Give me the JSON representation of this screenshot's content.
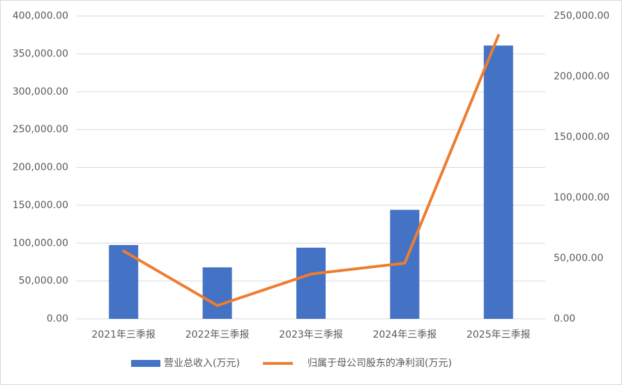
{
  "chart_data": {
    "type": "bar-line",
    "categories": [
      "2021年三季报",
      "2022年三季报",
      "2023年三季报",
      "2024年三季报",
      "2025年三季报"
    ],
    "series": [
      {
        "name": "营业总收入(万元)",
        "type": "bar",
        "color": "#4472c4",
        "values": [
          97500,
          68000,
          94000,
          144000,
          361000
        ]
      },
      {
        "name": "归属于母公司股东的净利润(万元)",
        "type": "line",
        "axis": "y2",
        "color": "#ed7d31",
        "values": [
          56000,
          11000,
          37000,
          46000,
          234000
        ]
      }
    ],
    "ylim": [
      0,
      400000
    ],
    "yticks": [
      {
        "value": 0,
        "label": "0.00"
      },
      {
        "value": 50000,
        "label": "50,000.00"
      },
      {
        "value": 100000,
        "label": "100,000.00"
      },
      {
        "value": 150000,
        "label": "150,000.00"
      },
      {
        "value": 200000,
        "label": "200,000.00"
      },
      {
        "value": 250000,
        "label": "250,000.00"
      },
      {
        "value": 300000,
        "label": "300,000.00"
      },
      {
        "value": 350000,
        "label": "350,000.00"
      },
      {
        "value": 400000,
        "label": "400,000.00"
      }
    ],
    "y2lim": [
      0,
      250000
    ],
    "y2ticks": [
      {
        "value": 0,
        "label": "0.00"
      },
      {
        "value": 50000,
        "label": "50,000.00"
      },
      {
        "value": 100000,
        "label": "100,000.00"
      },
      {
        "value": 150000,
        "label": "150,000.00"
      },
      {
        "value": 200000,
        "label": "200,000.00"
      },
      {
        "value": 250000,
        "label": "250,000.00"
      }
    ],
    "grid": true,
    "legend": "bottom"
  }
}
